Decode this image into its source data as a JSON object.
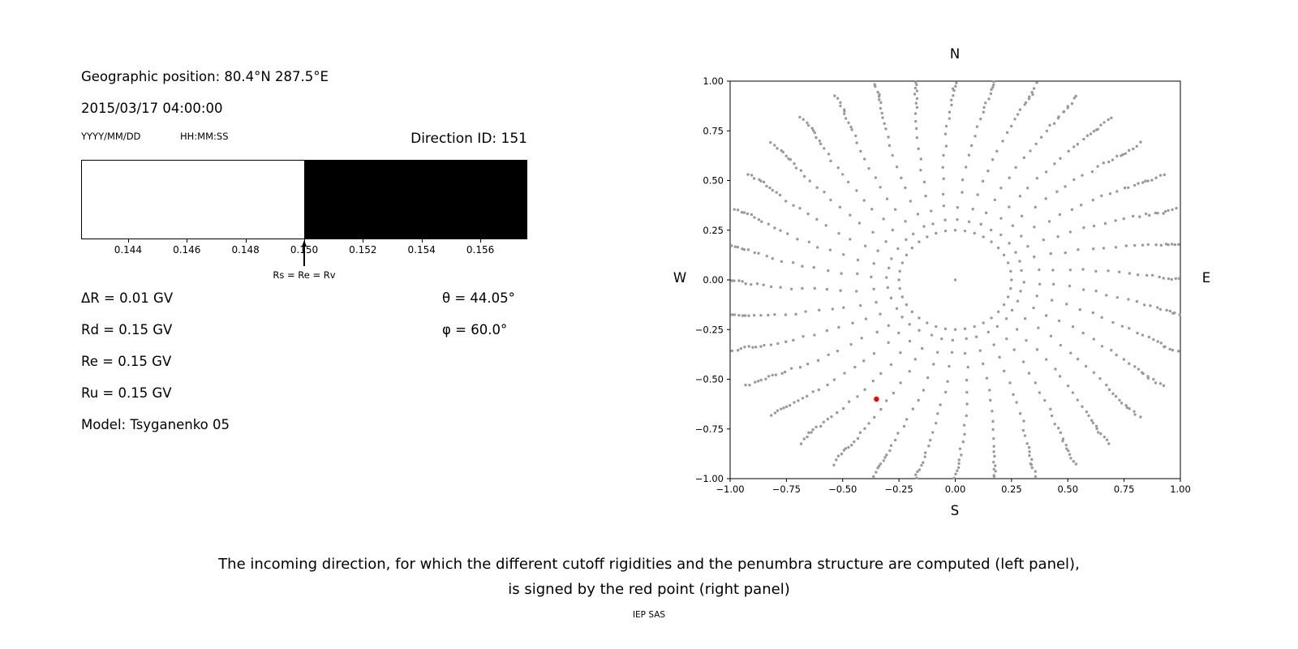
{
  "header": {
    "geographic_position": "Geographic position: 80.4°N 287.5°E",
    "datetime": "2015/03/17 04:00:00",
    "date_format_label": "YYYY/MM/DD",
    "time_format_label": "HH:MM:SS",
    "direction_id": "Direction ID: 151"
  },
  "parameters": {
    "delta_r": "ΔR = 0.01 GV",
    "rd": "Rd = 0.15 GV",
    "re": "Re = 0.15 GV",
    "ru": "Ru = 0.15 GV",
    "model": "Model: Tsyganenko 05",
    "theta": "θ = 44.05°",
    "phi": "φ = 60.0°"
  },
  "caption": {
    "line1": "The incoming direction, for which the different cutoff rigidities and the penumbra structure are computed (left panel),",
    "line2": "is signed by the red point (right panel)",
    "credit": "IEP SAS"
  },
  "chart_data": [
    {
      "type": "bar",
      "name": "penumbra-structure",
      "xlim": [
        0.1424,
        0.1576
      ],
      "tick_values": [
        0.144,
        0.146,
        0.148,
        0.15,
        0.152,
        0.154,
        0.156
      ],
      "tick_labels": [
        "0.144",
        "0.146",
        "0.148",
        "0.150",
        "0.152",
        "0.154",
        "0.156"
      ],
      "segments": [
        {
          "from": 0.1424,
          "to": 0.15,
          "color": "#ffffff"
        },
        {
          "from": 0.15,
          "to": 0.1576,
          "color": "#000000"
        }
      ],
      "annotation": {
        "x": 0.15,
        "label": "Rs = Re = Rv"
      }
    },
    {
      "type": "scatter",
      "name": "asymptotic-directions",
      "xlim": [
        -1.0,
        1.0
      ],
      "ylim": [
        -1.0,
        1.0
      ],
      "x_tick_values": [
        -1.0,
        -0.75,
        -0.5,
        -0.25,
        0.0,
        0.25,
        0.5,
        0.75,
        1.0
      ],
      "x_tick_labels": [
        "−1.00",
        "−0.75",
        "−0.50",
        "−0.25",
        "0.00",
        "0.25",
        "0.50",
        "0.75",
        "1.00"
      ],
      "y_tick_values": [
        -1.0,
        -0.75,
        -0.5,
        -0.25,
        0.0,
        0.25,
        0.5,
        0.75,
        1.0
      ],
      "y_tick_labels": [
        "−1.00",
        "−0.75",
        "−0.50",
        "−0.25",
        "0.00",
        "0.25",
        "0.50",
        "0.75",
        "1.00"
      ],
      "direction_labels": {
        "top": "N",
        "bottom": "S",
        "left": "W",
        "right": "E"
      },
      "dot_color": "#9a9a9a",
      "red_point": {
        "x": -0.35,
        "y": -0.6,
        "color": "#ff0000"
      },
      "pattern": {
        "spokes": 36,
        "spoke_radii": [
          0.3,
          0.37,
          0.44,
          0.51,
          0.57,
          0.63,
          0.68,
          0.73,
          0.775,
          0.815,
          0.85,
          0.88,
          0.905,
          0.928,
          0.948,
          0.965,
          0.98,
          0.995,
          1.01,
          1.03,
          1.05,
          1.07
        ],
        "twist_deg": 12,
        "ring_radius": 0.25,
        "ring_dots": 36,
        "center_dot": true,
        "jitter": 0.012
      }
    }
  ]
}
